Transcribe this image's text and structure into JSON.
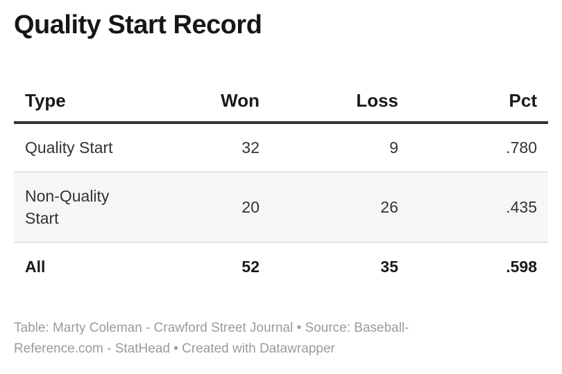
{
  "title": "Quality Start Record",
  "chart_data": {
    "type": "table",
    "title": "Quality Start Record",
    "columns": [
      "Type",
      "Won",
      "Loss",
      "Pct"
    ],
    "rows": [
      [
        "Quality Start",
        "32",
        "9",
        ".780"
      ],
      [
        "Non-Quality Start",
        "20",
        "26",
        ".435"
      ],
      [
        "All",
        "52",
        "35",
        ".598"
      ]
    ],
    "total_row_index": 2,
    "striped_row_index": 1,
    "layout": {
      "numeric_columns_align": "right",
      "header_rule_color": "#333333",
      "row_divider_color": "#e3e3e3",
      "stripe_color": "#f6f6f6"
    }
  },
  "footer": {
    "full_text": "Table: Marty Coleman - Crawford Street Journal • Source: Baseball-Reference.com - StatHead • Created with Datawrapper",
    "lines": [
      "Table: Marty Coleman - Crawford Street Journal • Source: Baseball-",
      "Reference.com - StatHead • Created with Datawrapper"
    ]
  },
  "colors": {
    "title_text": "#161616",
    "body_text": "#333333",
    "footer_text": "#9b9b9b",
    "header_rule": "#333333",
    "row_divider": "#e3e3e3",
    "stripe_background": "#f6f6f6",
    "page_background": "#ffffff"
  }
}
